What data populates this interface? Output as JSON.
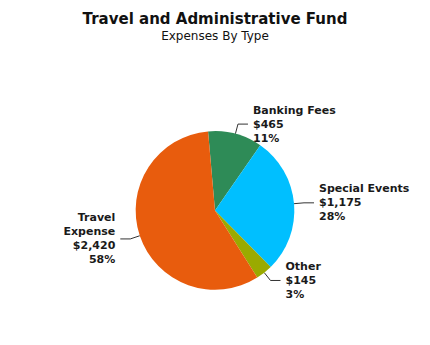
{
  "chart_data": {
    "type": "pie",
    "title": "Travel and Administrative Fund",
    "subtitle": "Expenses By Type",
    "categories": [
      "Banking Fees",
      "Special Events",
      "Other",
      "Travel\nExpense"
    ],
    "values": [
      465,
      1175,
      145,
      2420
    ],
    "value_labels": [
      "$465\n11%",
      "$1,175\n28%",
      "$145\n3%",
      "$2,420\n58%"
    ],
    "colors": [
      "#2e8b57",
      "#00bfff",
      "#9aaa00",
      "#e85c0d"
    ],
    "data_labels": true,
    "legend": false
  }
}
